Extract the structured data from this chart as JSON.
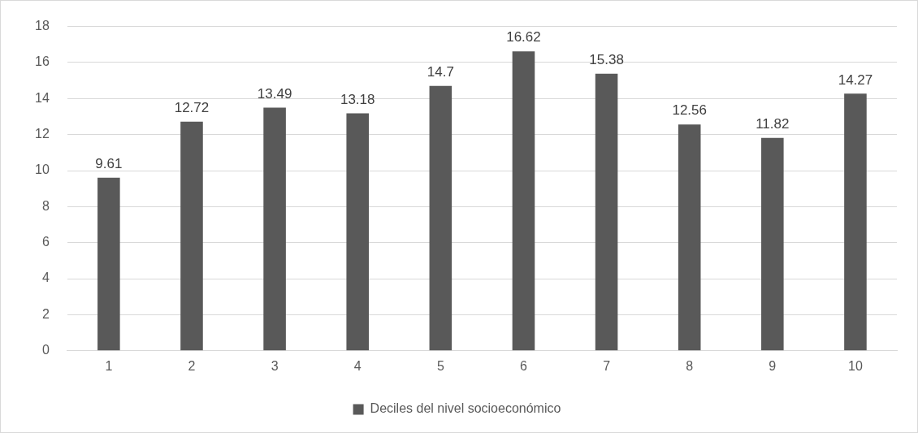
{
  "chart_data": {
    "type": "bar",
    "categories": [
      "1",
      "2",
      "3",
      "4",
      "5",
      "6",
      "7",
      "8",
      "9",
      "10"
    ],
    "series": [
      {
        "name": "Deciles del nivel socioeconómico",
        "color": "#595959",
        "values": [
          9.61,
          12.72,
          13.49,
          13.18,
          14.7,
          16.62,
          15.38,
          12.56,
          11.82,
          14.27
        ]
      }
    ],
    "ylim": [
      0,
      18
    ],
    "yticks": [
      0,
      2,
      4,
      6,
      8,
      10,
      12,
      14,
      16,
      18
    ],
    "grid": "y",
    "legend": "bottom",
    "data_labels": true
  }
}
